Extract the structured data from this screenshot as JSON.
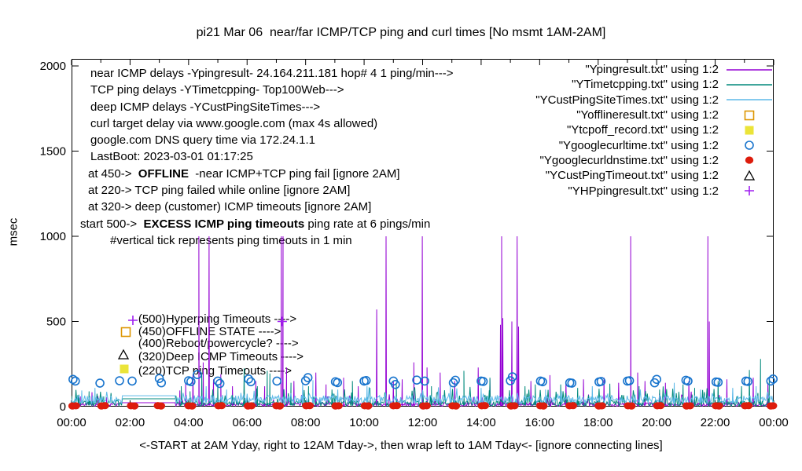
{
  "title": "pi21 Mar 06  near/far ICMP/TCP ping and curl times [No msmt 1AM-2AM]",
  "ylabel": "msec",
  "footer": "<-START at 2AM Yday, right to 12AM Tday->, then wrap left to 1AM Tday<- [ignore connecting lines]",
  "annotations": {
    "info_lines": [
      {
        "indent": 13,
        "segments": [
          {
            "t": "near ICMP delays -Ypingresult- 24.164.211.181 hop# 4 1 ping/min--->",
            "b": false
          }
        ]
      },
      {
        "indent": 13,
        "segments": [
          {
            "t": "TCP ping delays -YTimetcpping- Top100Web--->",
            "b": false
          }
        ]
      },
      {
        "indent": 13,
        "segments": [
          {
            "t": "deep ICMP delays -YCustPingSiteTimes--->",
            "b": false
          }
        ]
      },
      {
        "indent": 13,
        "segments": [
          {
            "t": "curl target delay via www.google.com (max 4s allowed)",
            "b": false
          }
        ]
      },
      {
        "indent": 13,
        "segments": [
          {
            "t": "google.com DNS query time via 172.24.1.1",
            "b": false
          }
        ]
      },
      {
        "indent": 13,
        "segments": [
          {
            "t": "LastBoot: 2023-03-01 01:17:25",
            "b": false
          }
        ]
      },
      {
        "indent": 10,
        "segments": [
          {
            "t": "at 450->  ",
            "b": false
          },
          {
            "t": "OFFLINE",
            "b": true
          },
          {
            "t": "  -near ICMP+TCP ping fail [ignore 2AM]",
            "b": false
          }
        ]
      },
      {
        "indent": 10,
        "segments": [
          {
            "t": "at 220-> TCP ping failed while online [ignore 2AM]",
            "b": false
          }
        ]
      },
      {
        "indent": 10,
        "segments": [
          {
            "t": "at 320-> deep (customer) ICMP timeouts [ignore 2AM]",
            "b": false
          }
        ]
      },
      {
        "indent": 0,
        "segments": [
          {
            "t": "start 500->  ",
            "b": false
          },
          {
            "t": "EXCESS ICMP ping timeouts",
            "b": true
          },
          {
            "t": " ping rate at 6 pings/min",
            "b": false
          }
        ]
      },
      {
        "indent": 38,
        "segments": [
          {
            "t": "#vertical tick represents ping timeouts in 1 min",
            "b": false
          }
        ]
      }
    ],
    "level_labels": [
      {
        "marker": "plus",
        "color": "#a020f0",
        "text": "(500)Hyperping Timeouts ---->",
        "marker_hour": 2.1,
        "marker_msec": 507,
        "text_hour": 2.28,
        "text_msec": 511
      },
      {
        "marker": "open-square",
        "color": "#dd9500",
        "text": "(450)OFFLINE STATE ---->",
        "marker_hour": 1.86,
        "marker_msec": 437,
        "text_hour": 2.28,
        "text_msec": 438
      },
      {
        "marker": "none",
        "color": "",
        "text": "(400)Reboot/powercycle? ---->",
        "marker_hour": 0,
        "marker_msec": 0,
        "text_hour": 2.28,
        "text_msec": 368
      },
      {
        "marker": "open-triangle",
        "color": "#000000",
        "text": "(320)Deep ICMP Timeouts ---->",
        "marker_hour": 1.78,
        "marker_msec": 304,
        "text_hour": 2.28,
        "text_msec": 290
      },
      {
        "marker": "filled-square",
        "color": "#ebe438",
        "text": "(220)TCP ping Timeouts ---->",
        "marker_hour": 1.81,
        "marker_msec": 221,
        "text_hour": 2.28,
        "text_msec": 207
      }
    ]
  },
  "legend": [
    {
      "label": "\"Ypingresult.txt\" using 1:2",
      "swatch": "line",
      "color": "#9400d3"
    },
    {
      "label": "\"YTimetcpping.txt\" using 1:2",
      "swatch": "line",
      "color": "#00897b"
    },
    {
      "label": "\"YCustPingSiteTimes.txt\" using 1:2",
      "swatch": "line",
      "color": "#5db9e8"
    },
    {
      "label": "\"Yofflineresult.txt\" using 1:2",
      "swatch": "open-square",
      "color": "#dd9500"
    },
    {
      "label": "\"Ytcpoff_record.txt\" using 1:2",
      "swatch": "filled-square",
      "color": "#ebe438"
    },
    {
      "label": "\"Ygooglecurltime.txt\" using 1:2",
      "swatch": "open-circle",
      "color": "#1874cd"
    },
    {
      "label": "\"Ygooglecurldnstime.txt\" using 1:2",
      "swatch": "filled-circle",
      "color": "#dd1c0c"
    },
    {
      "label": "\"YCustPingTimeout.txt\" using 1:2",
      "swatch": "open-triangle",
      "color": "#000000"
    },
    {
      "label": "\"YHPpingresult.txt\" using 1:2",
      "swatch": "plus",
      "color": "#a020f0"
    }
  ],
  "chart_data": {
    "type": "line",
    "x_tick_labels": [
      "00:00",
      "02:00",
      "04:00",
      "06:00",
      "08:00",
      "10:00",
      "12:00",
      "14:00",
      "16:00",
      "18:00",
      "20:00",
      "22:00",
      "00:00"
    ],
    "x_tick_hours": [
      0,
      2,
      4,
      6,
      8,
      10,
      12,
      14,
      16,
      18,
      20,
      22,
      24
    ],
    "y_ticks": [
      0,
      500,
      1000,
      1500,
      2000
    ],
    "x_range_hours": [
      0,
      24
    ],
    "y_range_msec": [
      0,
      2042
    ],
    "gap_hours": [
      1.72,
      3.55
    ],
    "series": [
      {
        "name": "Ypingresult.txt",
        "style": "line",
        "color": "#9400d3",
        "baseline": {
          "seed": 11,
          "base": 2,
          "amp": 22,
          "spike_p": 0.05,
          "spike_amp": 70,
          "gap_level": 23
        },
        "spikes": [
          [
            0.3,
            60
          ],
          [
            0.7,
            85
          ],
          [
            1.2,
            55
          ],
          [
            3.7,
            95
          ],
          [
            3.9,
            140
          ],
          [
            4.15,
            190
          ],
          [
            4.35,
            1000
          ],
          [
            4.5,
            260
          ],
          [
            4.7,
            1000
          ],
          [
            4.85,
            160
          ],
          [
            5.1,
            190
          ],
          [
            5.5,
            120
          ],
          [
            5.9,
            100
          ],
          [
            6.3,
            150
          ],
          [
            6.6,
            120
          ],
          [
            7.17,
            1000
          ],
          [
            7.23,
            1000
          ],
          [
            7.35,
            230
          ],
          [
            7.6,
            150
          ],
          [
            8.35,
            200
          ],
          [
            8.7,
            130
          ],
          [
            9.3,
            170
          ],
          [
            9.8,
            120
          ],
          [
            10.43,
            570
          ],
          [
            10.75,
            1000
          ],
          [
            11.0,
            150
          ],
          [
            11.3,
            160
          ],
          [
            11.7,
            260
          ],
          [
            11.99,
            1000
          ],
          [
            12.15,
            230
          ],
          [
            12.6,
            200
          ],
          [
            13.1,
            150
          ],
          [
            13.9,
            230
          ],
          [
            14.3,
            160
          ],
          [
            14.66,
            480
          ],
          [
            14.7,
            1000
          ],
          [
            14.74,
            520
          ],
          [
            15.05,
            500
          ],
          [
            15.23,
            1000
          ],
          [
            15.28,
            470
          ],
          [
            15.7,
            150
          ],
          [
            16.35,
            185
          ],
          [
            16.9,
            150
          ],
          [
            17.5,
            160
          ],
          [
            18.2,
            170
          ],
          [
            18.7,
            140
          ],
          [
            19.11,
            1000
          ],
          [
            19.35,
            200
          ],
          [
            19.6,
            150
          ],
          [
            20.3,
            140
          ],
          [
            21.1,
            150
          ],
          [
            21.75,
            1000
          ],
          [
            21.8,
            500
          ],
          [
            22.4,
            160
          ],
          [
            23.3,
            170
          ],
          [
            23.8,
            140
          ]
        ]
      },
      {
        "name": "YTimetcpping.txt",
        "style": "line",
        "color": "#00897b",
        "baseline": {
          "seed": 23,
          "base": 3,
          "amp": 32,
          "spike_p": 0.1,
          "spike_amp": 90,
          "gap_level": 46
        },
        "spikes": [
          [
            0.25,
            70
          ],
          [
            0.6,
            90
          ],
          [
            1.1,
            60
          ],
          [
            3.75,
            120
          ],
          [
            4.05,
            90
          ],
          [
            4.45,
            200
          ],
          [
            5.0,
            130
          ],
          [
            5.9,
            225
          ],
          [
            6.35,
            120
          ],
          [
            6.69,
            210
          ],
          [
            6.78,
            195
          ],
          [
            7.5,
            140
          ],
          [
            8.1,
            120
          ],
          [
            8.9,
            100
          ],
          [
            9.6,
            150
          ],
          [
            10.2,
            110
          ],
          [
            11.1,
            140
          ],
          [
            12.3,
            120
          ],
          [
            13.41,
            210
          ],
          [
            14.3,
            170
          ],
          [
            15.5,
            120
          ],
          [
            15.85,
            130
          ],
          [
            16.72,
            130
          ],
          [
            17.3,
            110
          ],
          [
            18.4,
            135
          ],
          [
            19.4,
            120
          ],
          [
            20.1,
            100
          ],
          [
            20.9,
            130
          ],
          [
            21.3,
            110
          ],
          [
            22.1,
            150
          ],
          [
            22.9,
            120
          ],
          [
            23.17,
            215
          ],
          [
            23.55,
            280
          ],
          [
            23.85,
            160
          ]
        ]
      },
      {
        "name": "YCustPingSiteTimes.txt",
        "style": "line",
        "color": "#5db9e8",
        "baseline": {
          "seed": 37,
          "base": 18,
          "amp": 48,
          "spike_p": 0.06,
          "spike_amp": 55,
          "gap_level": 64
        },
        "spikes": [
          [
            0.35,
            95
          ],
          [
            0.8,
            110
          ],
          [
            4.6,
            120
          ],
          [
            5.3,
            100
          ],
          [
            7.9,
            140
          ],
          [
            8.25,
            155
          ],
          [
            9.1,
            100
          ],
          [
            10.1,
            120
          ],
          [
            12.95,
            135
          ],
          [
            14.0,
            110
          ],
          [
            16.2,
            100
          ],
          [
            17.8,
            120
          ],
          [
            20.6,
            140
          ],
          [
            21.5,
            100
          ],
          [
            22.6,
            110
          ],
          [
            23.4,
            120
          ]
        ]
      },
      {
        "name": "Yofflineresult.txt",
        "style": "points",
        "marker": "open-square",
        "color": "#dd9500",
        "points": []
      },
      {
        "name": "Ytcpoff_record.txt",
        "style": "points",
        "marker": "filled-square",
        "color": "#ebe438",
        "points": []
      },
      {
        "name": "Ygooglecurltime.txt",
        "style": "points",
        "marker": "open-circle",
        "color": "#1874cd",
        "points": [
          [
            0.05,
            160
          ],
          [
            0.13,
            150
          ],
          [
            0.97,
            138
          ],
          [
            1.64,
            152
          ],
          [
            2.07,
            150
          ],
          [
            3.0,
            165
          ],
          [
            3.07,
            140
          ],
          [
            4.0,
            152
          ],
          [
            4.08,
            147
          ],
          [
            4.3,
            188
          ],
          [
            5.0,
            150
          ],
          [
            5.07,
            136
          ],
          [
            6.05,
            162
          ],
          [
            6.13,
            146
          ],
          [
            7.02,
            150
          ],
          [
            8.0,
            152
          ],
          [
            8.08,
            170
          ],
          [
            9.02,
            146
          ],
          [
            9.09,
            141
          ],
          [
            10.0,
            150
          ],
          [
            10.07,
            153
          ],
          [
            11.0,
            150
          ],
          [
            11.07,
            130
          ],
          [
            11.8,
            156
          ],
          [
            12.07,
            150
          ],
          [
            13.05,
            140
          ],
          [
            13.12,
            155
          ],
          [
            14.0,
            150
          ],
          [
            14.07,
            148
          ],
          [
            15.0,
            152
          ],
          [
            15.07,
            175
          ],
          [
            16.03,
            150
          ],
          [
            16.1,
            146
          ],
          [
            17.03,
            140
          ],
          [
            17.1,
            138
          ],
          [
            18.03,
            145
          ],
          [
            18.1,
            148
          ],
          [
            19.0,
            150
          ],
          [
            19.07,
            152
          ],
          [
            19.93,
            140
          ],
          [
            20.0,
            160
          ],
          [
            21.0,
            155
          ],
          [
            21.07,
            150
          ],
          [
            22.03,
            145
          ],
          [
            22.1,
            143
          ],
          [
            23.05,
            150
          ],
          [
            23.12,
            148
          ],
          [
            23.9,
            150
          ],
          [
            23.98,
            162
          ]
        ]
      },
      {
        "name": "Ygooglecurldnstime.txt",
        "style": "points",
        "marker": "filled-circle",
        "color": "#dd1c0c",
        "points": [
          [
            0.03,
            4
          ],
          [
            0.15,
            5
          ],
          [
            1.02,
            4
          ],
          [
            1.14,
            6
          ],
          [
            2.03,
            5
          ],
          [
            2.15,
            4
          ],
          [
            2.95,
            6
          ],
          [
            3.06,
            4
          ],
          [
            4.0,
            5
          ],
          [
            4.12,
            4
          ],
          [
            5.02,
            5
          ],
          [
            5.13,
            6
          ],
          [
            6.03,
            4
          ],
          [
            6.15,
            5
          ],
          [
            7.0,
            5
          ],
          [
            7.12,
            4
          ],
          [
            8.02,
            5
          ],
          [
            8.14,
            6
          ],
          [
            9.02,
            4
          ],
          [
            9.13,
            5
          ],
          [
            10.02,
            5
          ],
          [
            10.14,
            4
          ],
          [
            11.0,
            5
          ],
          [
            11.12,
            6
          ],
          [
            12.02,
            4
          ],
          [
            12.14,
            5
          ],
          [
            13.02,
            5
          ],
          [
            13.14,
            4
          ],
          [
            14.02,
            5
          ],
          [
            14.13,
            6
          ],
          [
            15.02,
            4
          ],
          [
            15.14,
            5
          ],
          [
            16.02,
            5
          ],
          [
            16.13,
            4
          ],
          [
            17.02,
            5
          ],
          [
            17.14,
            6
          ],
          [
            18.02,
            4
          ],
          [
            18.13,
            5
          ],
          [
            19.02,
            5
          ],
          [
            19.14,
            4
          ],
          [
            20.02,
            5
          ],
          [
            20.13,
            6
          ],
          [
            21.02,
            4
          ],
          [
            21.14,
            5
          ],
          [
            22.02,
            5
          ],
          [
            22.13,
            4
          ],
          [
            23.02,
            5
          ],
          [
            23.14,
            6
          ],
          [
            23.9,
            4
          ],
          [
            23.98,
            5
          ]
        ]
      },
      {
        "name": "YCustPingTimeout.txt",
        "style": "points",
        "marker": "open-triangle",
        "color": "#000000",
        "points": []
      },
      {
        "name": "YHPpingresult.txt",
        "style": "points",
        "marker": "plus",
        "color": "#a020f0",
        "points": [
          [
            7.2,
            500
          ]
        ]
      }
    ]
  }
}
